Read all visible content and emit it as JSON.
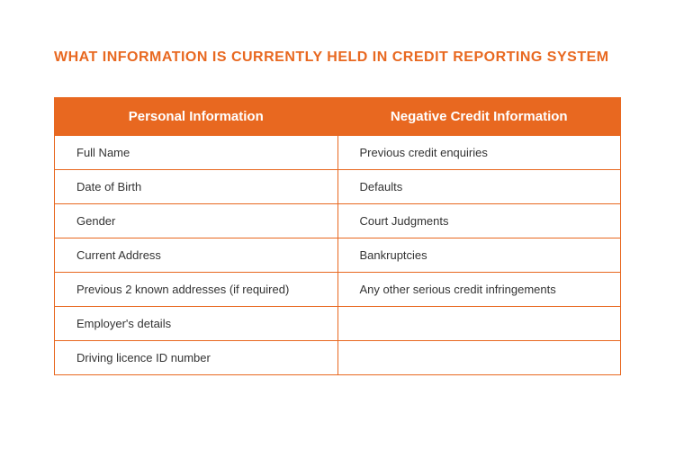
{
  "title": "WHAT INFORMATION IS CURRENTLY HELD IN CREDIT REPORTING SYSTEM",
  "table": {
    "columns": [
      "Personal Information",
      "Negative Credit Information"
    ],
    "rows": [
      [
        "Full Name",
        "Previous credit enquiries"
      ],
      [
        "Date of Birth",
        "Defaults"
      ],
      [
        "Gender",
        "Court Judgments"
      ],
      [
        "Current Address",
        "Bankruptcies"
      ],
      [
        "Previous 2 known addresses (if required)",
        "Any other serious credit infringements"
      ],
      [
        "Employer's details",
        ""
      ],
      [
        "Driving licence ID number",
        ""
      ]
    ],
    "header_bg": "#e86820",
    "header_text_color": "#ffffff",
    "border_color": "#e86820",
    "cell_text_color": "#333333",
    "title_color": "#e86820"
  }
}
